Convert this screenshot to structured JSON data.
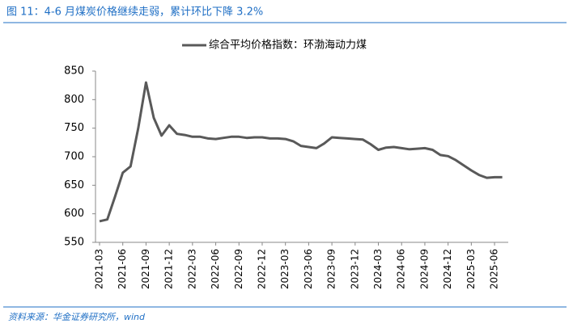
{
  "chart_data": {
    "type": "line",
    "title": "图 11：4-6 月煤炭价格继续走弱，累计环比下降 3.2%",
    "source": "资料来源：华金证券研究所，wind",
    "categories": [
      "2021-03",
      null,
      null,
      "2021-06",
      null,
      null,
      "2021-09",
      null,
      null,
      "2021-12",
      null,
      null,
      "2022-03",
      null,
      null,
      "2022-06",
      null,
      null,
      "2022-09",
      null,
      null,
      "2022-12",
      null,
      null,
      "2023-03",
      null,
      null,
      "2023-06",
      null,
      null,
      "2023-09",
      null,
      null,
      "2023-12",
      null,
      null,
      "2024-03",
      null,
      null,
      "2024-06",
      null,
      null,
      "2024-09",
      null,
      null,
      "2024-12",
      null,
      null,
      "2025-03",
      null,
      null,
      "2025-06",
      null
    ],
    "series": [
      {
        "name": "综合平均价格指数：环渤海动力煤",
        "color": "#595959",
        "values": [
          587,
          590,
          630,
          672,
          683,
          750,
          830,
          768,
          737,
          755,
          740,
          738,
          735,
          735,
          732,
          731,
          733,
          735,
          735,
          733,
          734,
          734,
          732,
          732,
          731,
          727,
          719,
          717,
          715,
          723,
          734,
          733,
          732,
          731,
          730,
          722,
          712,
          716,
          717,
          715,
          713,
          714,
          715,
          712,
          703,
          701,
          694,
          685,
          676,
          668,
          663,
          664,
          664
        ]
      }
    ],
    "ylim": [
      550,
      850
    ],
    "yticks": [
      550,
      600,
      650,
      700,
      750,
      800,
      850
    ]
  }
}
